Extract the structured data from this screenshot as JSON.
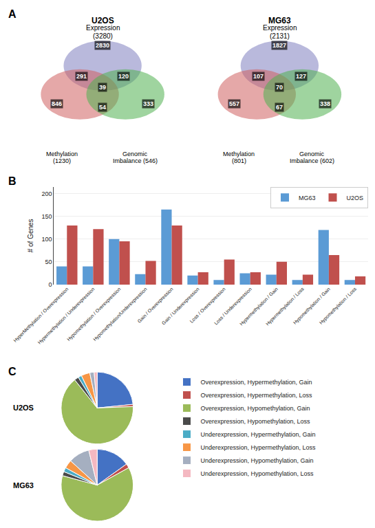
{
  "chart_data": [
    {
      "type": "venn",
      "title": "U2OS",
      "annotations": [
        "A"
      ],
      "data_labels": true,
      "sets": [
        {
          "name": "Expression",
          "label": "(3280)",
          "color": "#8080c0"
        },
        {
          "name": "Methylation",
          "label": "(1230)",
          "color": "#d06060"
        },
        {
          "name": "Genomic",
          "label": "Imbalance (546)",
          "color": "#50b050"
        }
      ],
      "values": [
        2830,
        846,
        333,
        291,
        120,
        54,
        39
      ]
    },
    {
      "type": "venn",
      "title": "MG63",
      "data_labels": true,
      "sets": [
        {
          "name": "Expression",
          "label": "(2131)",
          "color": "#8080c0"
        },
        {
          "name": "Methylation",
          "label": "(801)",
          "color": "#d06060"
        },
        {
          "name": "Genomic",
          "label": "Imbalance (602)",
          "color": "#50b050"
        }
      ],
      "values": [
        1827,
        557,
        338,
        107,
        127,
        67,
        70
      ]
    },
    {
      "type": "bar",
      "annotations": [
        "B"
      ],
      "categories": [
        "HyperMethylation / Overexpression",
        "Hypermethylation / Underexpression",
        "Hypomethylation / Overexpression",
        "Hypomethylation/Underexpression",
        "Gain / Overexpression",
        "Gain / Underexpression",
        "Loss / Overexpression",
        "Loss / Underexpression",
        "Hypermethylation / Gain",
        "Hypermethylation / Loss",
        "Hypomethylation / Gain",
        "Hypomethylation / Loss"
      ],
      "series": [
        {
          "name": "MG63",
          "color": "#5b9bd5",
          "values": [
            40,
            40,
            100,
            23,
            165,
            20,
            10,
            25,
            22,
            10,
            120,
            10
          ]
        },
        {
          "name": "U2OS",
          "color": "#c0504d",
          "values": [
            130,
            122,
            95,
            52,
            130,
            27,
            55,
            27,
            50,
            22,
            65,
            18
          ]
        }
      ],
      "ylabel": "# of Genes",
      "ylim": [
        0,
        215
      ],
      "yticks": [
        0,
        50,
        100,
        150,
        200
      ],
      "grid": true,
      "legend": "upper right"
    },
    {
      "type": "pie",
      "title": "U2OS",
      "annotations": [
        "C"
      ],
      "categories": [
        "Overexpression, Hypermethylation, Gain",
        "Overexpression, Hypermethylation, Loss",
        "Overexpression, Hypomethylation, Gain",
        "Overexpression, Hypomethylation, Loss",
        "Underexpression, Hypermethylation, Gain",
        "Underexpression, Hypermethylation, Loss",
        "Underexpression, Hypomethylation, Gain",
        "Underexpression, Hypomethylation, Loss"
      ],
      "values": [
        120,
        5,
        333,
        10,
        8,
        20,
        10,
        7
      ],
      "colors": [
        "#4472c4",
        "#c0504d",
        "#9bbb59",
        "#4a4a4a",
        "#4bacc6",
        "#f79646",
        "#a5afc0",
        "#f4b8c1"
      ],
      "legend": "right"
    },
    {
      "type": "pie",
      "title": "MG63",
      "categories": [
        "Overexpression, Hypermethylation, Gain",
        "Overexpression, Hypermethylation, Loss",
        "Overexpression, Hypomethylation, Gain",
        "Overexpression, Hypomethylation, Loss",
        "Underexpression, Hypermethylation, Gain",
        "Underexpression, Hypermethylation, Loss",
        "Underexpression, Hypomethylation, Gain",
        "Underexpression, Hypomethylation, Loss"
      ],
      "values": [
        40,
        5,
        165,
        5,
        5,
        10,
        25,
        10
      ],
      "colors": [
        "#4472c4",
        "#c0504d",
        "#9bbb59",
        "#4a4a4a",
        "#4bacc6",
        "#f79646",
        "#a5afc0",
        "#f4b8c1"
      ],
      "legend": "right"
    }
  ]
}
